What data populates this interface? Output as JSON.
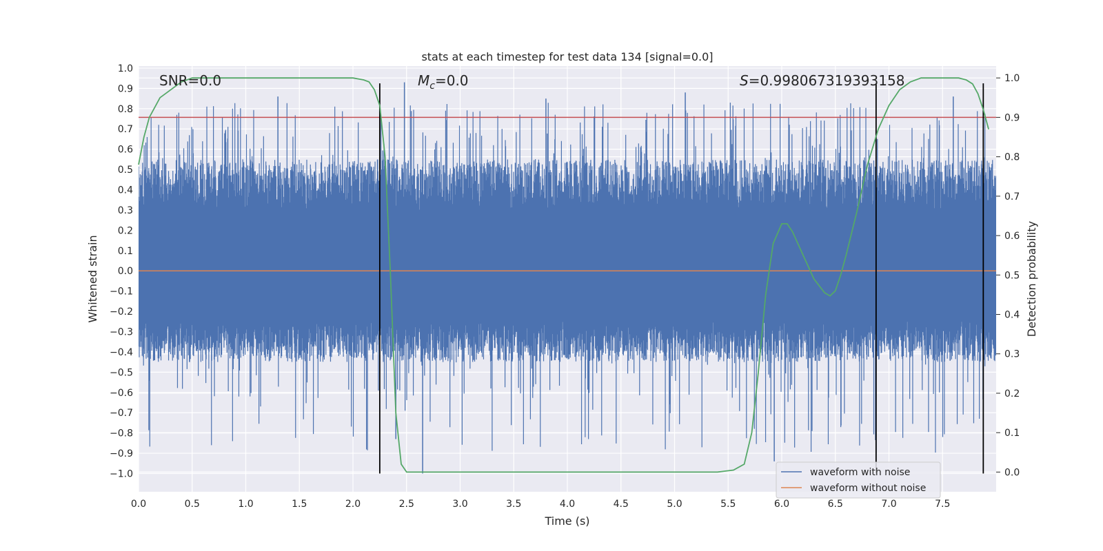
{
  "chart_data": {
    "type": "line",
    "title": "stats at each timestep for test data 134 [signal=0.0]",
    "xlabel": "Time (s)",
    "ylabel_left": "Whitened strain",
    "ylabel_right": "Detection probability",
    "xlim": [
      0.0,
      8.0
    ],
    "ylim_left": [
      -1.09,
      1.01
    ],
    "ylim_right": [
      -0.05,
      1.03
    ],
    "x_ticks": [
      0.0,
      0.5,
      1.0,
      1.5,
      2.0,
      2.5,
      3.0,
      3.5,
      4.0,
      4.5,
      5.0,
      5.5,
      6.0,
      6.5,
      7.0,
      7.5
    ],
    "x_tick_labels": [
      "0.0",
      "0.5",
      "1.0",
      "1.5",
      "2.0",
      "2.5",
      "3.0",
      "3.5",
      "4.0",
      "4.5",
      "5.0",
      "5.5",
      "6.0",
      "6.5",
      "7.0",
      "7.5"
    ],
    "y_left_ticks": [
      1.0,
      0.9,
      0.8,
      0.7,
      0.6,
      0.5,
      0.4,
      0.3,
      0.2,
      0.1,
      0.0,
      -0.1,
      -0.2,
      -0.3,
      -0.4,
      -0.5,
      -0.6,
      -0.7,
      -0.8,
      -0.9,
      -1.0
    ],
    "y_left_tick_labels": [
      "1.0",
      "0.9",
      "0.8",
      "0.7",
      "0.6",
      "0.5",
      "0.4",
      "0.3",
      "0.2",
      "0.1",
      "0.0",
      "−0.1",
      "−0.2",
      "−0.3",
      "−0.4",
      "−0.5",
      "−0.6",
      "−0.7",
      "−0.8",
      "−0.9",
      "−1.0"
    ],
    "y_right_ticks": [
      1.0,
      0.9,
      0.8,
      0.7,
      0.6,
      0.5,
      0.4,
      0.3,
      0.2,
      0.1,
      0.0
    ],
    "y_right_tick_labels": [
      "1.0",
      "0.9",
      "0.8",
      "0.7",
      "0.6",
      "0.5",
      "0.4",
      "0.3",
      "0.2",
      "0.1",
      "0.0"
    ],
    "grid": true,
    "series": [
      {
        "name": "waveform with noise",
        "axis": "left",
        "color": "#4c72b0",
        "kind": "noise",
        "noise_band": [
          -0.45,
          0.55
        ],
        "noise_extremes": [
          -1.0,
          0.93
        ],
        "notable_peaks": [
          {
            "x": 1.3,
            "y": 0.86
          },
          {
            "x": 2.48,
            "y": 0.93
          },
          {
            "x": 2.65,
            "y": -1.0
          },
          {
            "x": 3.8,
            "y": 0.85
          },
          {
            "x": 5.1,
            "y": 0.88
          },
          {
            "x": 5.93,
            "y": -0.94
          },
          {
            "x": 6.88,
            "y": -0.9
          },
          {
            "x": 7.6,
            "y": 0.86
          },
          {
            "x": 2.4,
            "y": -0.83
          }
        ]
      },
      {
        "name": "waveform without noise",
        "axis": "left",
        "color": "#dd8452",
        "x": [
          0.0,
          8.0
        ],
        "y": [
          0.0,
          0.0
        ]
      },
      {
        "name": "detection probability",
        "axis": "right",
        "color": "#55a868",
        "x": [
          0.0,
          0.05,
          0.1,
          0.2,
          0.3,
          0.4,
          0.5,
          0.8,
          1.2,
          1.6,
          2.0,
          2.1,
          2.15,
          2.2,
          2.25,
          2.3,
          2.35,
          2.4,
          2.45,
          2.5,
          3.0,
          3.5,
          4.0,
          4.5,
          5.0,
          5.4,
          5.55,
          5.65,
          5.72,
          5.78,
          5.85,
          5.92,
          6.0,
          6.05,
          6.1,
          6.2,
          6.3,
          6.4,
          6.45,
          6.5,
          6.55,
          6.6,
          6.7,
          6.8,
          6.9,
          7.0,
          7.1,
          7.2,
          7.3,
          7.5,
          7.65,
          7.72,
          7.78,
          7.83,
          7.88,
          7.93
        ],
        "y": [
          0.78,
          0.85,
          0.9,
          0.95,
          0.97,
          0.99,
          1.0,
          1.0,
          1.0,
          1.0,
          1.0,
          0.995,
          0.99,
          0.97,
          0.93,
          0.8,
          0.5,
          0.15,
          0.02,
          0.0,
          0.0,
          0.0,
          0.0,
          0.0,
          0.0,
          0.0,
          0.005,
          0.02,
          0.1,
          0.25,
          0.45,
          0.58,
          0.63,
          0.63,
          0.61,
          0.55,
          0.49,
          0.455,
          0.447,
          0.46,
          0.5,
          0.55,
          0.66,
          0.78,
          0.87,
          0.93,
          0.97,
          0.99,
          1.0,
          1.0,
          1.0,
          0.995,
          0.985,
          0.96,
          0.92,
          0.87
        ]
      }
    ],
    "threshold_line": {
      "axis": "right",
      "y": 0.9,
      "color": "#c44e52"
    },
    "vertical_markers": {
      "x": [
        2.25,
        6.88,
        7.88
      ],
      "y_range": [
        -1.0,
        0.925
      ],
      "color": "#000000"
    },
    "annotations": [
      {
        "text": "SNR=0.0",
        "x": 0.2,
        "y": 0.95
      },
      {
        "text": "M",
        "subscript": "c",
        "suffix": "=0.0",
        "x": 2.6,
        "y": 0.95
      },
      {
        "text": "S",
        "suffix": "=0.998067319393158",
        "x": 5.95,
        "y": 0.95
      }
    ],
    "legend": {
      "position": "lower-right",
      "entries": [
        {
          "label": "waveform with noise",
          "color": "#4c72b0"
        },
        {
          "label": "waveform without noise",
          "color": "#dd8452"
        }
      ]
    }
  }
}
